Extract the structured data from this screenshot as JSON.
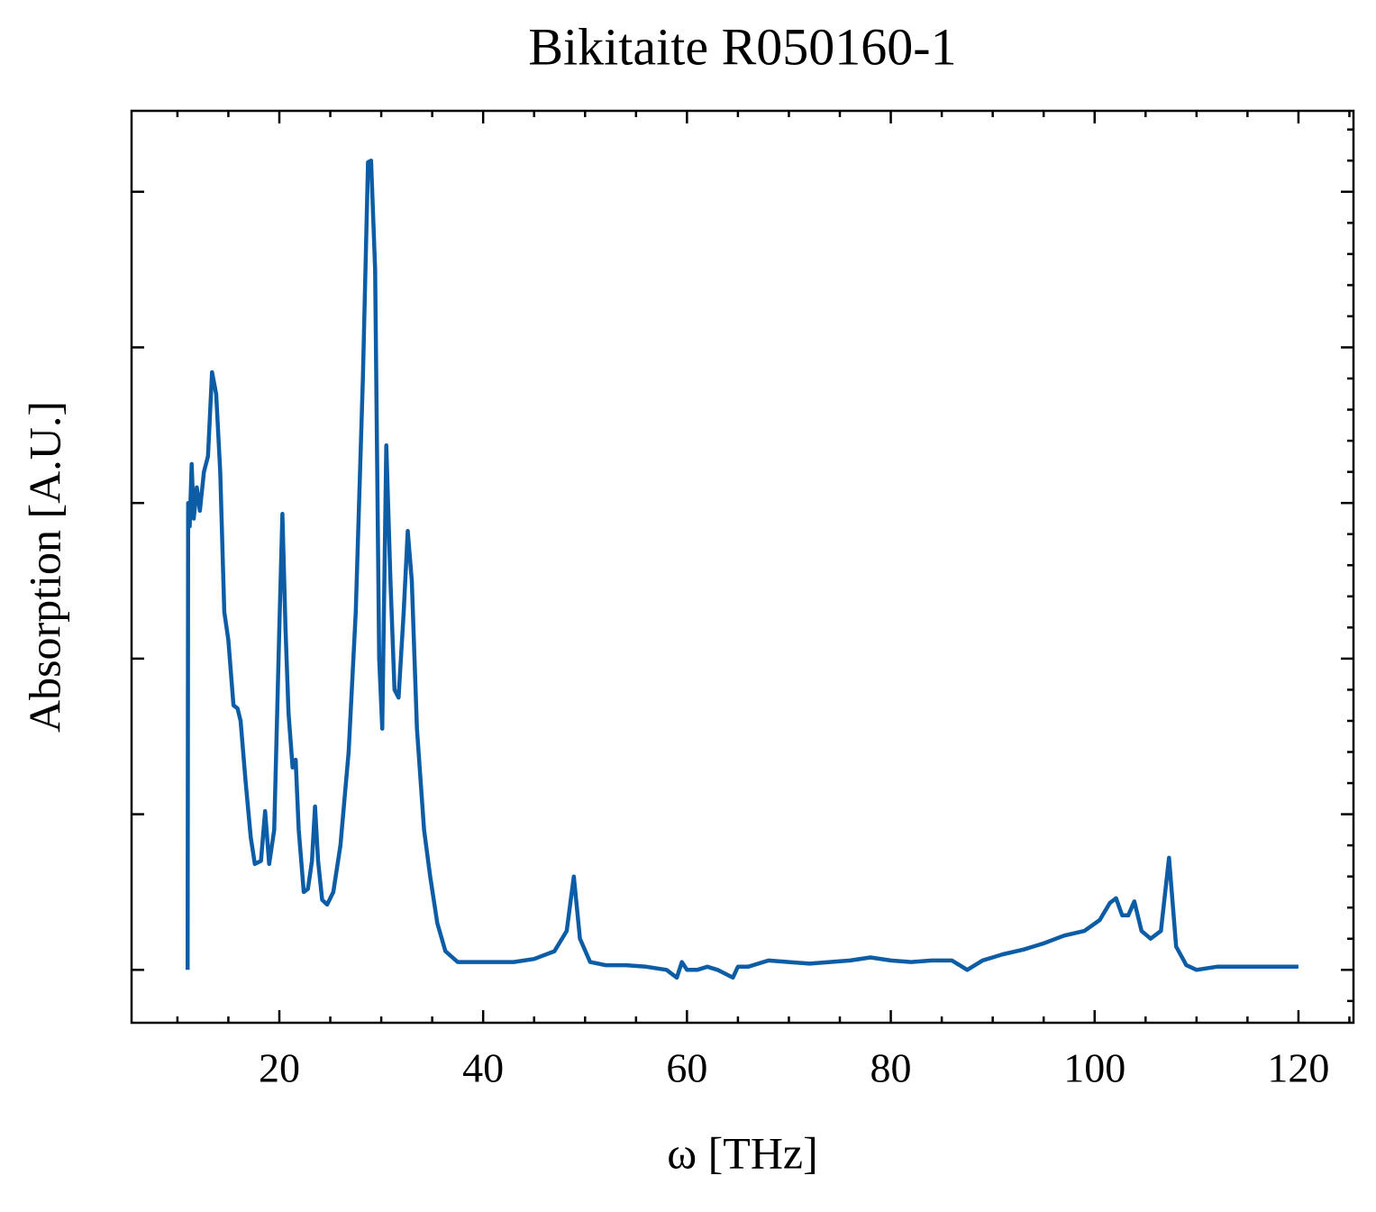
{
  "chart_data": {
    "type": "line",
    "title": "Bikitaite R050160-1",
    "x_label": "ω [THz]",
    "y_label": "Absorption [A.U.]",
    "xlim": [
      5.5,
      125.4
    ],
    "xticks": [
      20,
      40,
      60,
      80,
      100,
      120
    ],
    "ylim": [
      -0.34,
      5.52
    ],
    "yticks": [
      0,
      1,
      2,
      3,
      4,
      5
    ],
    "series": [
      {
        "name": "Bikitaite R050160-1",
        "color": "#0c5da5",
        "x": [
          11.0,
          11.05,
          11.2,
          11.4,
          11.6,
          11.9,
          12.2,
          12.6,
          13.0,
          13.4,
          13.8,
          14.2,
          14.6,
          15.0,
          15.5,
          15.9,
          16.2,
          16.7,
          17.2,
          17.6,
          18.2,
          18.6,
          19.0,
          19.5,
          20.0,
          20.3,
          20.6,
          20.9,
          21.3,
          21.6,
          21.9,
          22.4,
          22.8,
          23.2,
          23.5,
          23.8,
          24.2,
          24.7,
          25.3,
          26.0,
          26.8,
          27.5,
          28.2,
          28.7,
          29.0,
          29.4,
          29.8,
          30.1,
          30.5,
          30.9,
          31.3,
          31.7,
          32.2,
          32.6,
          33.0,
          33.5,
          34.2,
          34.8,
          35.5,
          36.3,
          37.5,
          39.0,
          41.0,
          43.0,
          45.0,
          47.0,
          48.2,
          48.9,
          49.5,
          50.5,
          52.0,
          54.0,
          56.0,
          58.0,
          59.0,
          59.5,
          60.0,
          61.0,
          62.0,
          63.0,
          64.5,
          65.0,
          66.0,
          68.0,
          70.0,
          72.0,
          74.0,
          76.0,
          78.0,
          80.0,
          82.0,
          84.0,
          86.0,
          87.5,
          89.0,
          91.0,
          93.0,
          95.0,
          97.0,
          99.0,
          100.5,
          101.5,
          102.1,
          102.7,
          103.3,
          103.9,
          104.6,
          105.5,
          106.5,
          107.3,
          108.0,
          109.0,
          110.0,
          112.0,
          114.0,
          116.0,
          118.0,
          120.0
        ],
        "values": [
          0.0,
          3.0,
          2.85,
          3.25,
          2.9,
          3.1,
          2.95,
          3.2,
          3.3,
          3.84,
          3.7,
          3.2,
          2.3,
          2.12,
          1.7,
          1.68,
          1.6,
          1.2,
          0.85,
          0.68,
          0.7,
          1.02,
          0.68,
          0.9,
          2.2,
          2.93,
          2.2,
          1.65,
          1.3,
          1.35,
          0.9,
          0.5,
          0.52,
          0.7,
          1.05,
          0.7,
          0.45,
          0.42,
          0.5,
          0.8,
          1.4,
          2.3,
          3.8,
          5.19,
          5.2,
          4.5,
          2.0,
          1.55,
          3.37,
          2.5,
          1.8,
          1.75,
          2.3,
          2.82,
          2.5,
          1.55,
          0.9,
          0.6,
          0.3,
          0.12,
          0.05,
          0.05,
          0.05,
          0.05,
          0.07,
          0.12,
          0.25,
          0.6,
          0.2,
          0.05,
          0.03,
          0.03,
          0.02,
          0.0,
          -0.05,
          0.05,
          0.0,
          0.0,
          0.02,
          0.0,
          -0.05,
          0.02,
          0.02,
          0.06,
          0.05,
          0.04,
          0.05,
          0.06,
          0.08,
          0.06,
          0.05,
          0.06,
          0.06,
          0.0,
          0.06,
          0.1,
          0.13,
          0.17,
          0.22,
          0.25,
          0.32,
          0.43,
          0.46,
          0.35,
          0.35,
          0.44,
          0.25,
          0.2,
          0.25,
          0.72,
          0.15,
          0.03,
          0.0,
          0.02,
          0.02,
          0.02,
          0.02,
          0.02
        ]
      }
    ]
  }
}
